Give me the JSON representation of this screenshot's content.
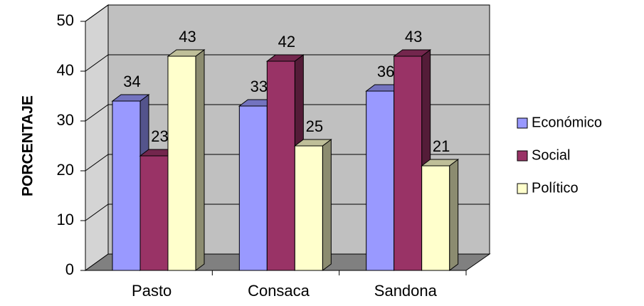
{
  "chart_data": {
    "type": "bar3d",
    "y_axis_label": "PORCENTAJE",
    "categories": [
      "Pasto",
      "Consaca",
      "Sandona"
    ],
    "series": [
      {
        "name": "Económico",
        "color": "#9999ff",
        "values": [
          34,
          33,
          36
        ]
      },
      {
        "name": "Social",
        "color": "#993366",
        "values": [
          23,
          42,
          43
        ]
      },
      {
        "name": "Político",
        "color": "#ffffcc",
        "values": [
          43,
          25,
          21
        ]
      }
    ],
    "ylim": [
      0,
      50
    ],
    "yticks": [
      0,
      10,
      20,
      30,
      40,
      50
    ],
    "grid": true,
    "legend": "right"
  }
}
